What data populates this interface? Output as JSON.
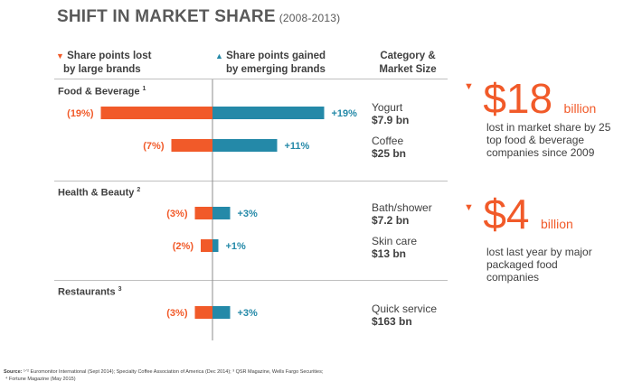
{
  "title": "SHIFT IN MARKET SHARE",
  "subtitle": "(2008-2013)",
  "headers": {
    "lost_arrow": "▼",
    "lost_line1": "Share points lost",
    "lost_line2": "by large brands",
    "gained_arrow": "▲",
    "gained_line1": "Share points gained",
    "gained_line2": "by emerging brands",
    "category_line1": "Category &",
    "category_line2": "Market Size"
  },
  "groups": [
    {
      "label": "Food & Beverage",
      "sup": "1"
    },
    {
      "label": "Health & Beauty",
      "sup": "2"
    },
    {
      "label": "Restaurants",
      "sup": "3"
    }
  ],
  "rows": [
    {
      "category": "Yogurt",
      "size": "$7.9 bn"
    },
    {
      "category": "Coffee",
      "size": "$25 bn"
    },
    {
      "category": "Bath/shower",
      "size": "$7.2 bn"
    },
    {
      "category": "Skin care",
      "size": "$13 bn"
    },
    {
      "category": "Quick service",
      "size": "$163 bn"
    }
  ],
  "chart_data": {
    "type": "bar",
    "categories": [
      "Yogurt",
      "Coffee",
      "Bath/shower",
      "Skin care",
      "Quick service"
    ],
    "series": [
      {
        "name": "Share points lost by large brands",
        "values": [
          -19,
          -7,
          -3,
          -2,
          -3
        ],
        "labels": [
          "(19%)",
          "(7%)",
          "(3%)",
          "(2%)",
          "(3%)"
        ],
        "color": "#f15a29"
      },
      {
        "name": "Share points gained by emerging brands",
        "values": [
          19,
          11,
          3,
          1,
          3
        ],
        "labels": [
          "+19%",
          "+11%",
          "+3%",
          "+1%",
          "+3%"
        ],
        "color": "#2489a8"
      }
    ]
  },
  "callouts": [
    {
      "arrow": "▼",
      "number": "$18",
      "unit": "billion",
      "desc": "lost in market share by 25 top food & beverage companies since 2009"
    },
    {
      "arrow": "▼",
      "number": "$4",
      "unit": "billion",
      "desc": "lost last year by major packaged food companies"
    }
  ],
  "source": {
    "prefix": "Source:",
    "line1": "¹ᐟ² Euromonitor International (Sept 2014); Specialty Coffee Association of America (Dec 2014); ³ QSR Magazine, Wells Fargo Securities;",
    "line2": "⁴ Fortune Magazine (May 2015)"
  },
  "colors": {
    "lost": "#f15a29",
    "gained": "#2489a8",
    "axis": "#8c8c8c"
  }
}
